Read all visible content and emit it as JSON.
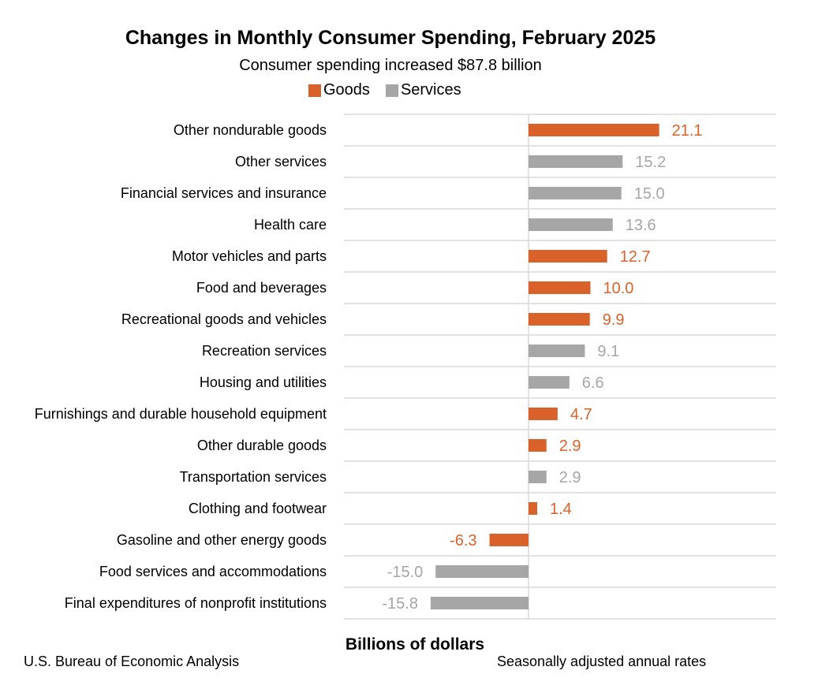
{
  "chart_data": {
    "type": "bar",
    "orientation": "horizontal",
    "title": "Changes in Monthly Consumer Spending, February 2025",
    "subtitle": "Consumer spending increased $87.8 billion",
    "xlabel": "Billions of dollars",
    "legend": [
      {
        "name": "Goods",
        "color": "#D9622B"
      },
      {
        "name": "Services",
        "color": "#A6A6A6"
      }
    ],
    "legend_position": "top",
    "grid": "horizontal",
    "xlim": [
      -22,
      24
    ],
    "categories": [
      "Other nondurable goods",
      "Other services",
      "Financial services and insurance",
      "Health care",
      "Motor vehicles and parts",
      "Food and beverages",
      "Recreational goods and vehicles",
      "Recreation services",
      "Housing and utilities",
      "Furnishings and durable household equipment",
      "Other durable goods",
      "Transportation services",
      "Clothing and footwear",
      "Gasoline and other energy goods",
      "Food services and accommodations",
      "Final expenditures of nonprofit institutions"
    ],
    "values": [
      21.1,
      15.2,
      15.0,
      13.6,
      12.7,
      10.0,
      9.9,
      9.1,
      6.6,
      4.7,
      2.9,
      2.9,
      1.4,
      -6.3,
      -15.0,
      -15.8
    ],
    "value_labels": [
      "21.1",
      "15.2",
      "15.0",
      "13.6",
      "12.7",
      "10.0",
      "9.9",
      "9.1",
      "6.6",
      "4.7",
      "2.9",
      "2.9",
      "1.4",
      "-6.3",
      "-15.0",
      "-15.8"
    ],
    "groups": [
      "Goods",
      "Services",
      "Services",
      "Services",
      "Goods",
      "Goods",
      "Goods",
      "Services",
      "Services",
      "Goods",
      "Goods",
      "Services",
      "Goods",
      "Goods",
      "Services",
      "Services"
    ]
  },
  "footer": {
    "source": "U.S. Bureau of Economic Analysis",
    "note": "Seasonally adjusted annual rates"
  }
}
